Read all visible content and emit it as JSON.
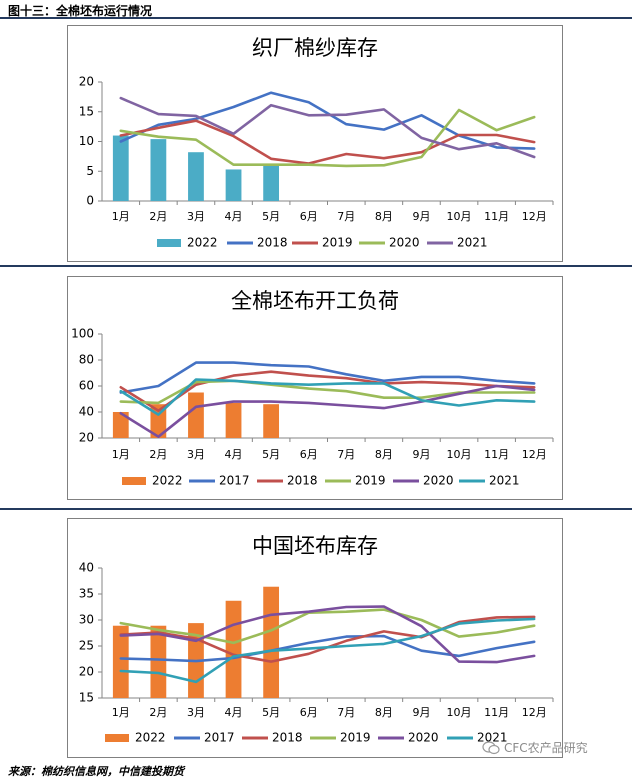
{
  "header": {
    "caption": "图十三：全棉坯布运行情况"
  },
  "footer": {
    "source": "来源：棉纺织信息网，中信建投期货",
    "watermark": "CFC农产品研究"
  },
  "colors": {
    "2022": "#4bacc6",
    "2017": "#4472c4",
    "2018": "#c0504d",
    "2019": "#9bbb59",
    "2020": "#8064a2",
    "2021": "#4bacc6",
    "bar2022_b": "#ed7d31",
    "l2017_b": "#4472c4",
    "l2018_b": "#c0504d",
    "l2019_b": "#9bbb59",
    "l2020_b": "#7a4f9e",
    "l2021_b": "#31a0b5"
  },
  "chart_data": [
    {
      "type": "bar",
      "title": "织厂棉纱库存",
      "categories": [
        "1月",
        "2月",
        "3月",
        "4月",
        "5月",
        "6月",
        "7月",
        "8月",
        "9月",
        "10月",
        "11月",
        "12月"
      ],
      "ylim": [
        0,
        20
      ],
      "yticks": [
        0,
        5,
        10,
        15,
        20
      ],
      "legend_position": "bottom",
      "series": [
        {
          "name": "2022",
          "type": "bar",
          "color": "#4bacc6",
          "values": [
            11.0,
            10.4,
            8.2,
            5.3,
            5.9,
            null,
            null,
            null,
            null,
            null,
            null,
            null
          ]
        },
        {
          "name": "2018",
          "type": "line",
          "color": "#4472c4",
          "values": [
            10.0,
            12.8,
            13.8,
            15.8,
            18.2,
            16.6,
            12.9,
            12.0,
            14.4,
            11.0,
            9.0,
            8.8
          ]
        },
        {
          "name": "2019",
          "type": "line",
          "color": "#c0504d",
          "values": [
            11.0,
            12.3,
            13.5,
            10.9,
            7.1,
            6.3,
            7.9,
            7.2,
            8.2,
            11.1,
            11.1,
            9.9
          ]
        },
        {
          "name": "2020",
          "type": "line",
          "color": "#9bbb59",
          "values": [
            11.8,
            10.8,
            10.3,
            6.1,
            6.1,
            6.1,
            5.9,
            6.0,
            7.4,
            15.3,
            11.9,
            14.1
          ]
        },
        {
          "name": "2021",
          "type": "line",
          "color": "#8064a2",
          "values": [
            17.3,
            14.6,
            14.3,
            11.3,
            16.1,
            14.4,
            14.5,
            15.4,
            10.6,
            8.7,
            9.7,
            7.4
          ]
        }
      ]
    },
    {
      "type": "bar",
      "title": "全棉坯布开工负荷",
      "categories": [
        "1月",
        "2月",
        "3月",
        "4月",
        "5月",
        "6月",
        "7月",
        "8月",
        "9月",
        "10月",
        "11月",
        "12月"
      ],
      "ylim": [
        20,
        100
      ],
      "yticks": [
        20,
        40,
        60,
        80,
        100
      ],
      "legend_position": "bottom",
      "series": [
        {
          "name": "2022",
          "type": "bar",
          "color": "#ed7d31",
          "values": [
            40,
            46,
            55,
            47,
            46,
            null,
            null,
            null,
            null,
            null,
            null,
            null
          ]
        },
        {
          "name": "2017",
          "type": "line",
          "color": "#4472c4",
          "values": [
            55,
            60,
            78,
            78,
            76,
            75,
            69,
            64,
            67,
            67,
            64,
            62
          ]
        },
        {
          "name": "2018",
          "type": "line",
          "color": "#c0504d",
          "values": [
            59,
            41,
            61,
            68,
            71,
            68,
            66,
            62,
            63,
            62,
            60,
            59
          ]
        },
        {
          "name": "2019",
          "type": "line",
          "color": "#9bbb59",
          "values": [
            48,
            47,
            63,
            64,
            61,
            58,
            56,
            51,
            51,
            55,
            55,
            55
          ]
        },
        {
          "name": "2020",
          "type": "line",
          "color": "#7a4f9e",
          "values": [
            39,
            21,
            44,
            48,
            48,
            47,
            45,
            43,
            48,
            54,
            60,
            57
          ]
        },
        {
          "name": "2021",
          "type": "line",
          "color": "#31a0b5",
          "values": [
            56,
            38,
            65,
            64,
            62,
            61,
            62,
            62,
            49,
            45,
            49,
            48
          ]
        }
      ]
    },
    {
      "type": "bar",
      "title": "中国坯布库存",
      "categories": [
        "1月",
        "2月",
        "3月",
        "4月",
        "5月",
        "6月",
        "7月",
        "8月",
        "9月",
        "10月",
        "11月",
        "12月"
      ],
      "ylim": [
        15,
        40
      ],
      "yticks": [
        15,
        20,
        25,
        30,
        35,
        40
      ],
      "legend_position": "bottom",
      "series": [
        {
          "name": "2022",
          "type": "bar",
          "color": "#ed7d31",
          "values": [
            28.9,
            28.9,
            29.4,
            33.7,
            36.4,
            null,
            null,
            null,
            null,
            null,
            null,
            null
          ]
        },
        {
          "name": "2017",
          "type": "line",
          "color": "#4472c4",
          "values": [
            22.6,
            22.4,
            22.1,
            22.7,
            24.1,
            25.6,
            26.8,
            26.9,
            24.1,
            23.1,
            24.6,
            25.8
          ]
        },
        {
          "name": "2018",
          "type": "line",
          "color": "#c0504d",
          "values": [
            27.2,
            27.6,
            26.4,
            23.3,
            22.0,
            23.5,
            26.0,
            27.8,
            26.7,
            29.6,
            30.5,
            30.6
          ]
        },
        {
          "name": "2019",
          "type": "line",
          "color": "#9bbb59",
          "values": [
            29.4,
            28.1,
            27.1,
            25.6,
            28.0,
            31.4,
            31.6,
            32.0,
            30.0,
            26.8,
            27.6,
            28.9
          ]
        },
        {
          "name": "2020",
          "type": "line",
          "color": "#7a4f9e",
          "values": [
            27.0,
            27.3,
            26.0,
            29.1,
            31.0,
            31.6,
            32.5,
            32.6,
            28.8,
            22.0,
            21.9,
            23.1
          ]
        },
        {
          "name": "2021",
          "type": "line",
          "color": "#31a0b5",
          "values": [
            20.2,
            19.8,
            18.1,
            23.0,
            24.1,
            24.5,
            25.0,
            25.4,
            26.9,
            29.3,
            29.9,
            30.2
          ]
        }
      ]
    }
  ]
}
